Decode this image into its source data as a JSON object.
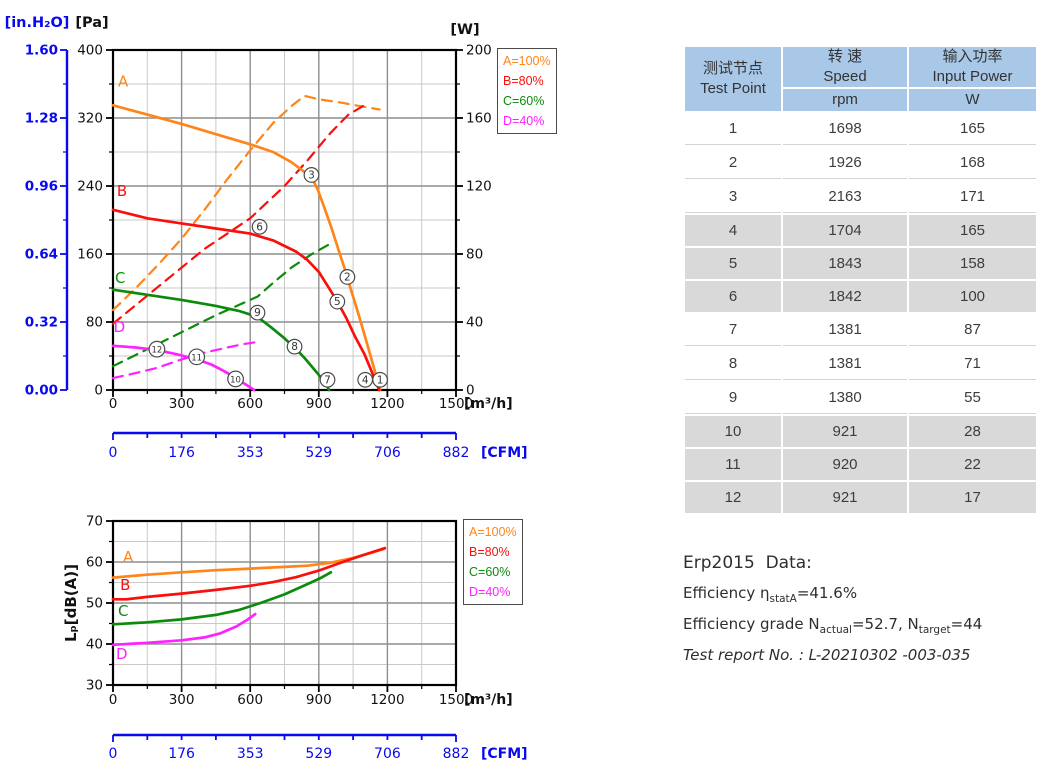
{
  "colors": {
    "accent_blue": "#0909EE",
    "orange": "#FF8519",
    "red": "#FA0F0C",
    "green": "#0B8A0B",
    "magenta": "#FF22FF",
    "table_header": "#A9C8E8",
    "table_gray_row": "#D9D9D9"
  },
  "chart_data": [
    {
      "id": "pressure-power-curve",
      "type": "line",
      "x": {
        "label": "[m³/h]",
        "max": 1500,
        "major_step": 300,
        "minor_step": 150,
        "tick_labels": [
          "0",
          "300",
          "600",
          "900",
          "1200",
          "1500"
        ]
      },
      "x2": {
        "label": "[CFM]",
        "tick_labels": [
          "0",
          "176",
          "353",
          "529",
          "706",
          "882"
        ]
      },
      "y": {
        "label": "[Pa]",
        "min": 0,
        "max": 400,
        "major_step": 80,
        "minor_step": 40,
        "tick_labels": [
          "0",
          "80",
          "160",
          "240",
          "320",
          "400"
        ]
      },
      "y2": {
        "label": "[in.H₂O]",
        "tick_labels": [
          "0.00",
          "0.32",
          "0.64",
          "0.96",
          "1.28",
          "1.60"
        ]
      },
      "y_right": {
        "label": "[W]",
        "max": 200,
        "tick_labels": [
          "0",
          "40",
          "80",
          "120",
          "160",
          "200"
        ]
      },
      "legend": [
        {
          "label": "A=100%",
          "color": "#FF8519"
        },
        {
          "label": "B=80%",
          "color": "#FA0F0C"
        },
        {
          "label": "C=60%",
          "color": "#0B8A0B"
        },
        {
          "label": "D=40%",
          "color": "#FF22FF"
        }
      ],
      "series": [
        {
          "key": "A-power-dashed",
          "name": "A input power",
          "color": "#FF8519",
          "dash": true,
          "axis": "W",
          "points": [
            [
              0,
              47
            ],
            [
              100,
              60
            ],
            [
              200,
              74
            ],
            [
              300,
              89
            ],
            [
              400,
              106
            ],
            [
              500,
              124
            ],
            [
              600,
              141
            ],
            [
              700,
              157
            ],
            [
              780,
              167
            ],
            [
              838,
              173
            ],
            [
              900,
              171
            ],
            [
              1000,
              169
            ],
            [
              1080,
              167
            ],
            [
              1166,
              165
            ]
          ]
        },
        {
          "key": "B-power-dashed",
          "name": "B input power",
          "color": "#FA0F0C",
          "dash": true,
          "axis": "W",
          "points": [
            [
              0,
              39
            ],
            [
              200,
              61
            ],
            [
              400,
              83
            ],
            [
              600,
              101
            ],
            [
              750,
              120
            ],
            [
              850,
              135
            ],
            [
              950,
              151
            ],
            [
              1030,
              162
            ],
            [
              1105,
              168
            ]
          ]
        },
        {
          "key": "C-power-dashed",
          "name": "C input power",
          "color": "#0B8A0B",
          "dash": true,
          "axis": "W",
          "points": [
            [
              0,
              14
            ],
            [
              150,
              24
            ],
            [
              300,
              34
            ],
            [
              450,
              44
            ],
            [
              550,
              50
            ],
            [
              633,
              55
            ],
            [
              700,
              63
            ],
            [
              780,
              72
            ],
            [
              870,
              80
            ],
            [
              950,
              86
            ]
          ]
        },
        {
          "key": "D-power-dashed",
          "name": "D input power",
          "color": "#FF22FF",
          "dash": true,
          "axis": "W",
          "points": [
            [
              0,
              7
            ],
            [
              100,
              10
            ],
            [
              192,
              13
            ],
            [
              300,
              18
            ],
            [
              400,
              22
            ],
            [
              500,
              25
            ],
            [
              570,
              27
            ],
            [
              618,
              28
            ]
          ]
        },
        {
          "key": "A-pressure-solid",
          "name": "A static pressure",
          "color": "#FF8519",
          "dash": false,
          "axis": "Pa",
          "points": [
            [
              0,
              335
            ],
            [
              150,
              324
            ],
            [
              300,
              313
            ],
            [
              450,
              301
            ],
            [
              600,
              289
            ],
            [
              700,
              280
            ],
            [
              780,
              268
            ],
            [
              830,
              258
            ],
            [
              868,
              250
            ],
            [
              895,
              236
            ],
            [
              925,
              214
            ],
            [
              955,
              191
            ],
            [
              985,
              166
            ],
            [
              1015,
              141
            ],
            [
              1045,
              114
            ],
            [
              1075,
              88
            ],
            [
              1105,
              60
            ],
            [
              1135,
              32
            ],
            [
              1160,
              8
            ],
            [
              1168,
              0
            ]
          ]
        },
        {
          "key": "B-pressure-solid",
          "name": "B static pressure",
          "color": "#FA0F0C",
          "dash": false,
          "axis": "Pa",
          "points": [
            [
              0,
              212
            ],
            [
              150,
              202
            ],
            [
              300,
              196
            ],
            [
              450,
              190
            ],
            [
              600,
              184
            ],
            [
              700,
              176
            ],
            [
              800,
              163
            ],
            [
              850,
              153
            ],
            [
              900,
              139
            ],
            [
              940,
              122
            ],
            [
              981,
              104
            ],
            [
              1020,
              85
            ],
            [
              1060,
              62
            ],
            [
              1100,
              42
            ],
            [
              1140,
              16
            ],
            [
              1164,
              0
            ]
          ]
        },
        {
          "key": "C-pressure-solid",
          "name": "C static pressure",
          "color": "#0B8A0B",
          "dash": false,
          "axis": "Pa",
          "points": [
            [
              0,
              118
            ],
            [
              150,
              112
            ],
            [
              300,
              106
            ],
            [
              450,
              99
            ],
            [
              550,
              93
            ],
            [
              632,
              86
            ],
            [
              690,
              74
            ],
            [
              740,
              63
            ],
            [
              794,
              50
            ],
            [
              840,
              37
            ],
            [
              890,
              21
            ],
            [
              930,
              8
            ],
            [
              945,
              0
            ]
          ]
        },
        {
          "key": "D-pressure-solid",
          "name": "D static pressure",
          "color": "#FF22FF",
          "dash": false,
          "axis": "Pa",
          "points": [
            [
              0,
              52
            ],
            [
              100,
              50
            ],
            [
              192,
              47
            ],
            [
              280,
              42
            ],
            [
              366,
              36
            ],
            [
              430,
              30
            ],
            [
              480,
              23
            ],
            [
              520,
              17
            ],
            [
              560,
              10
            ],
            [
              600,
              3
            ],
            [
              617,
              0
            ]
          ]
        }
      ],
      "curve_labels": [
        {
          "text": "A",
          "color": "#FF8519",
          "x": 22,
          "v": 357
        },
        {
          "text": "B",
          "color": "#FA0F0C",
          "x": 17,
          "v": 228
        },
        {
          "text": "C",
          "color": "#0B8A0B",
          "x": 9,
          "v": 126
        },
        {
          "text": "D",
          "color": "#FF22FF",
          "x": 3,
          "v": 68
        }
      ],
      "test_points": [
        {
          "n": "3",
          "flow": 868,
          "pa": 253
        },
        {
          "n": "2",
          "flow": 1025,
          "pa": 133
        },
        {
          "n": "1",
          "flow": 1168,
          "pa": 12
        },
        {
          "n": "6",
          "flow": 641,
          "pa": 192
        },
        {
          "n": "5",
          "flow": 981,
          "pa": 104
        },
        {
          "n": "4",
          "flow": 1103,
          "pa": 12
        },
        {
          "n": "9",
          "flow": 632,
          "pa": 91
        },
        {
          "n": "8",
          "flow": 794,
          "pa": 51
        },
        {
          "n": "7",
          "flow": 938,
          "pa": 12
        },
        {
          "n": "12",
          "flow": 192,
          "pa": 48
        },
        {
          "n": "11",
          "flow": 366,
          "pa": 39
        },
        {
          "n": "10",
          "flow": 536,
          "pa": 13
        }
      ]
    },
    {
      "id": "noise-curve",
      "type": "line",
      "x": {
        "label": "[m³/h]",
        "max": 1500,
        "major_step": 300,
        "minor_step": 150,
        "tick_labels": [
          "0",
          "300",
          "600",
          "900",
          "1200",
          "1500"
        ]
      },
      "x2": {
        "label": "[CFM]",
        "tick_labels": [
          "0",
          "176",
          "353",
          "529",
          "706",
          "882"
        ]
      },
      "y": {
        "label": "Lₚ[dB(A)]",
        "min": 30,
        "max": 70,
        "major_step": 10,
        "minor_step": 5,
        "tick_labels": [
          "30",
          "40",
          "50",
          "60",
          "70"
        ]
      },
      "legend": [
        {
          "label": "A=100%",
          "color": "#FF8519"
        },
        {
          "label": "B=80%",
          "color": "#FA0F0C"
        },
        {
          "label": "C=60%",
          "color": "#0B8A0B"
        },
        {
          "label": "D=40%",
          "color": "#FF22FF"
        }
      ],
      "series": [
        {
          "key": "A-noise",
          "name": "A noise level",
          "color": "#FF8519",
          "dash": false,
          "axis": "dB",
          "points": [
            [
              0,
              56.2
            ],
            [
              150,
              56.9
            ],
            [
              300,
              57.5
            ],
            [
              450,
              58.0
            ],
            [
              600,
              58.4
            ],
            [
              750,
              58.8
            ],
            [
              850,
              59.1
            ],
            [
              950,
              59.8
            ],
            [
              1050,
              61.0
            ],
            [
              1120,
              62.1
            ],
            [
              1185,
              63.2
            ]
          ]
        },
        {
          "key": "B-noise",
          "name": "B noise level",
          "color": "#FA0F0C",
          "dash": false,
          "axis": "dB",
          "points": [
            [
              0,
              50.9
            ],
            [
              60,
              50.9
            ],
            [
              150,
              51.5
            ],
            [
              300,
              52.3
            ],
            [
              450,
              53.2
            ],
            [
              600,
              54.2
            ],
            [
              700,
              55.1
            ],
            [
              800,
              56.3
            ],
            [
              900,
              57.9
            ],
            [
              1000,
              59.9
            ],
            [
              1100,
              61.8
            ],
            [
              1189,
              63.4
            ]
          ]
        },
        {
          "key": "C-noise",
          "name": "C noise level",
          "color": "#0B8A0B",
          "dash": false,
          "axis": "dB",
          "points": [
            [
              0,
              44.8
            ],
            [
              150,
              45.3
            ],
            [
              300,
              46.0
            ],
            [
              450,
              47.1
            ],
            [
              550,
              48.3
            ],
            [
              650,
              50.1
            ],
            [
              750,
              52.1
            ],
            [
              850,
              54.6
            ],
            [
              905,
              56.0
            ],
            [
              953,
              57.5
            ]
          ]
        },
        {
          "key": "D-noise",
          "name": "D noise level",
          "color": "#FF22FF",
          "dash": false,
          "axis": "dB",
          "points": [
            [
              0,
              39.8
            ],
            [
              150,
              40.3
            ],
            [
              300,
              40.9
            ],
            [
              400,
              41.6
            ],
            [
              470,
              42.6
            ],
            [
              540,
              44.3
            ],
            [
              590,
              46.0
            ],
            [
              622,
              47.3
            ]
          ]
        }
      ],
      "curve_labels": [
        {
          "text": "A",
          "color": "#FF8519",
          "x": 44,
          "v": 60.0
        },
        {
          "text": "B",
          "color": "#FA0F0C",
          "x": 31,
          "v": 53.2
        },
        {
          "text": "C",
          "color": "#0B8A0B",
          "x": 22,
          "v": 46.8
        },
        {
          "text": "D",
          "color": "#FF22FF",
          "x": 13,
          "v": 36.4
        }
      ],
      "test_points": []
    }
  ],
  "table": {
    "headers": {
      "test_point": "测试节点\nTest Point",
      "speed": "转 速\nSpeed",
      "speed_unit": "rpm",
      "power": "输入功率\nInput Power",
      "power_unit": "W"
    },
    "rows": [
      [
        "1",
        "1698",
        "165"
      ],
      [
        "2",
        "1926",
        "168"
      ],
      [
        "3",
        "2163",
        "171"
      ],
      [
        "4",
        "1704",
        "165"
      ],
      [
        "5",
        "1843",
        "158"
      ],
      [
        "6",
        "1842",
        "100"
      ],
      [
        "7",
        "1381",
        "87"
      ],
      [
        "8",
        "1381",
        "71"
      ],
      [
        "9",
        "1380",
        "55"
      ],
      [
        "10",
        "921",
        "28"
      ],
      [
        "11",
        "920",
        "22"
      ],
      [
        "12",
        "921",
        "17"
      ]
    ]
  },
  "erp": {
    "title": "Erp2015  Data:",
    "eff_prefix": "Efficiency η",
    "eff_sub": "statA",
    "eff_value": "=41.6%",
    "grade_p1": "Efficiency grade N",
    "grade_s1": "actual",
    "grade_p2": "=52.7, N",
    "grade_s2": "target",
    "grade_p3": "=44",
    "report": "Test report No. : L-20210302 -003-035"
  }
}
